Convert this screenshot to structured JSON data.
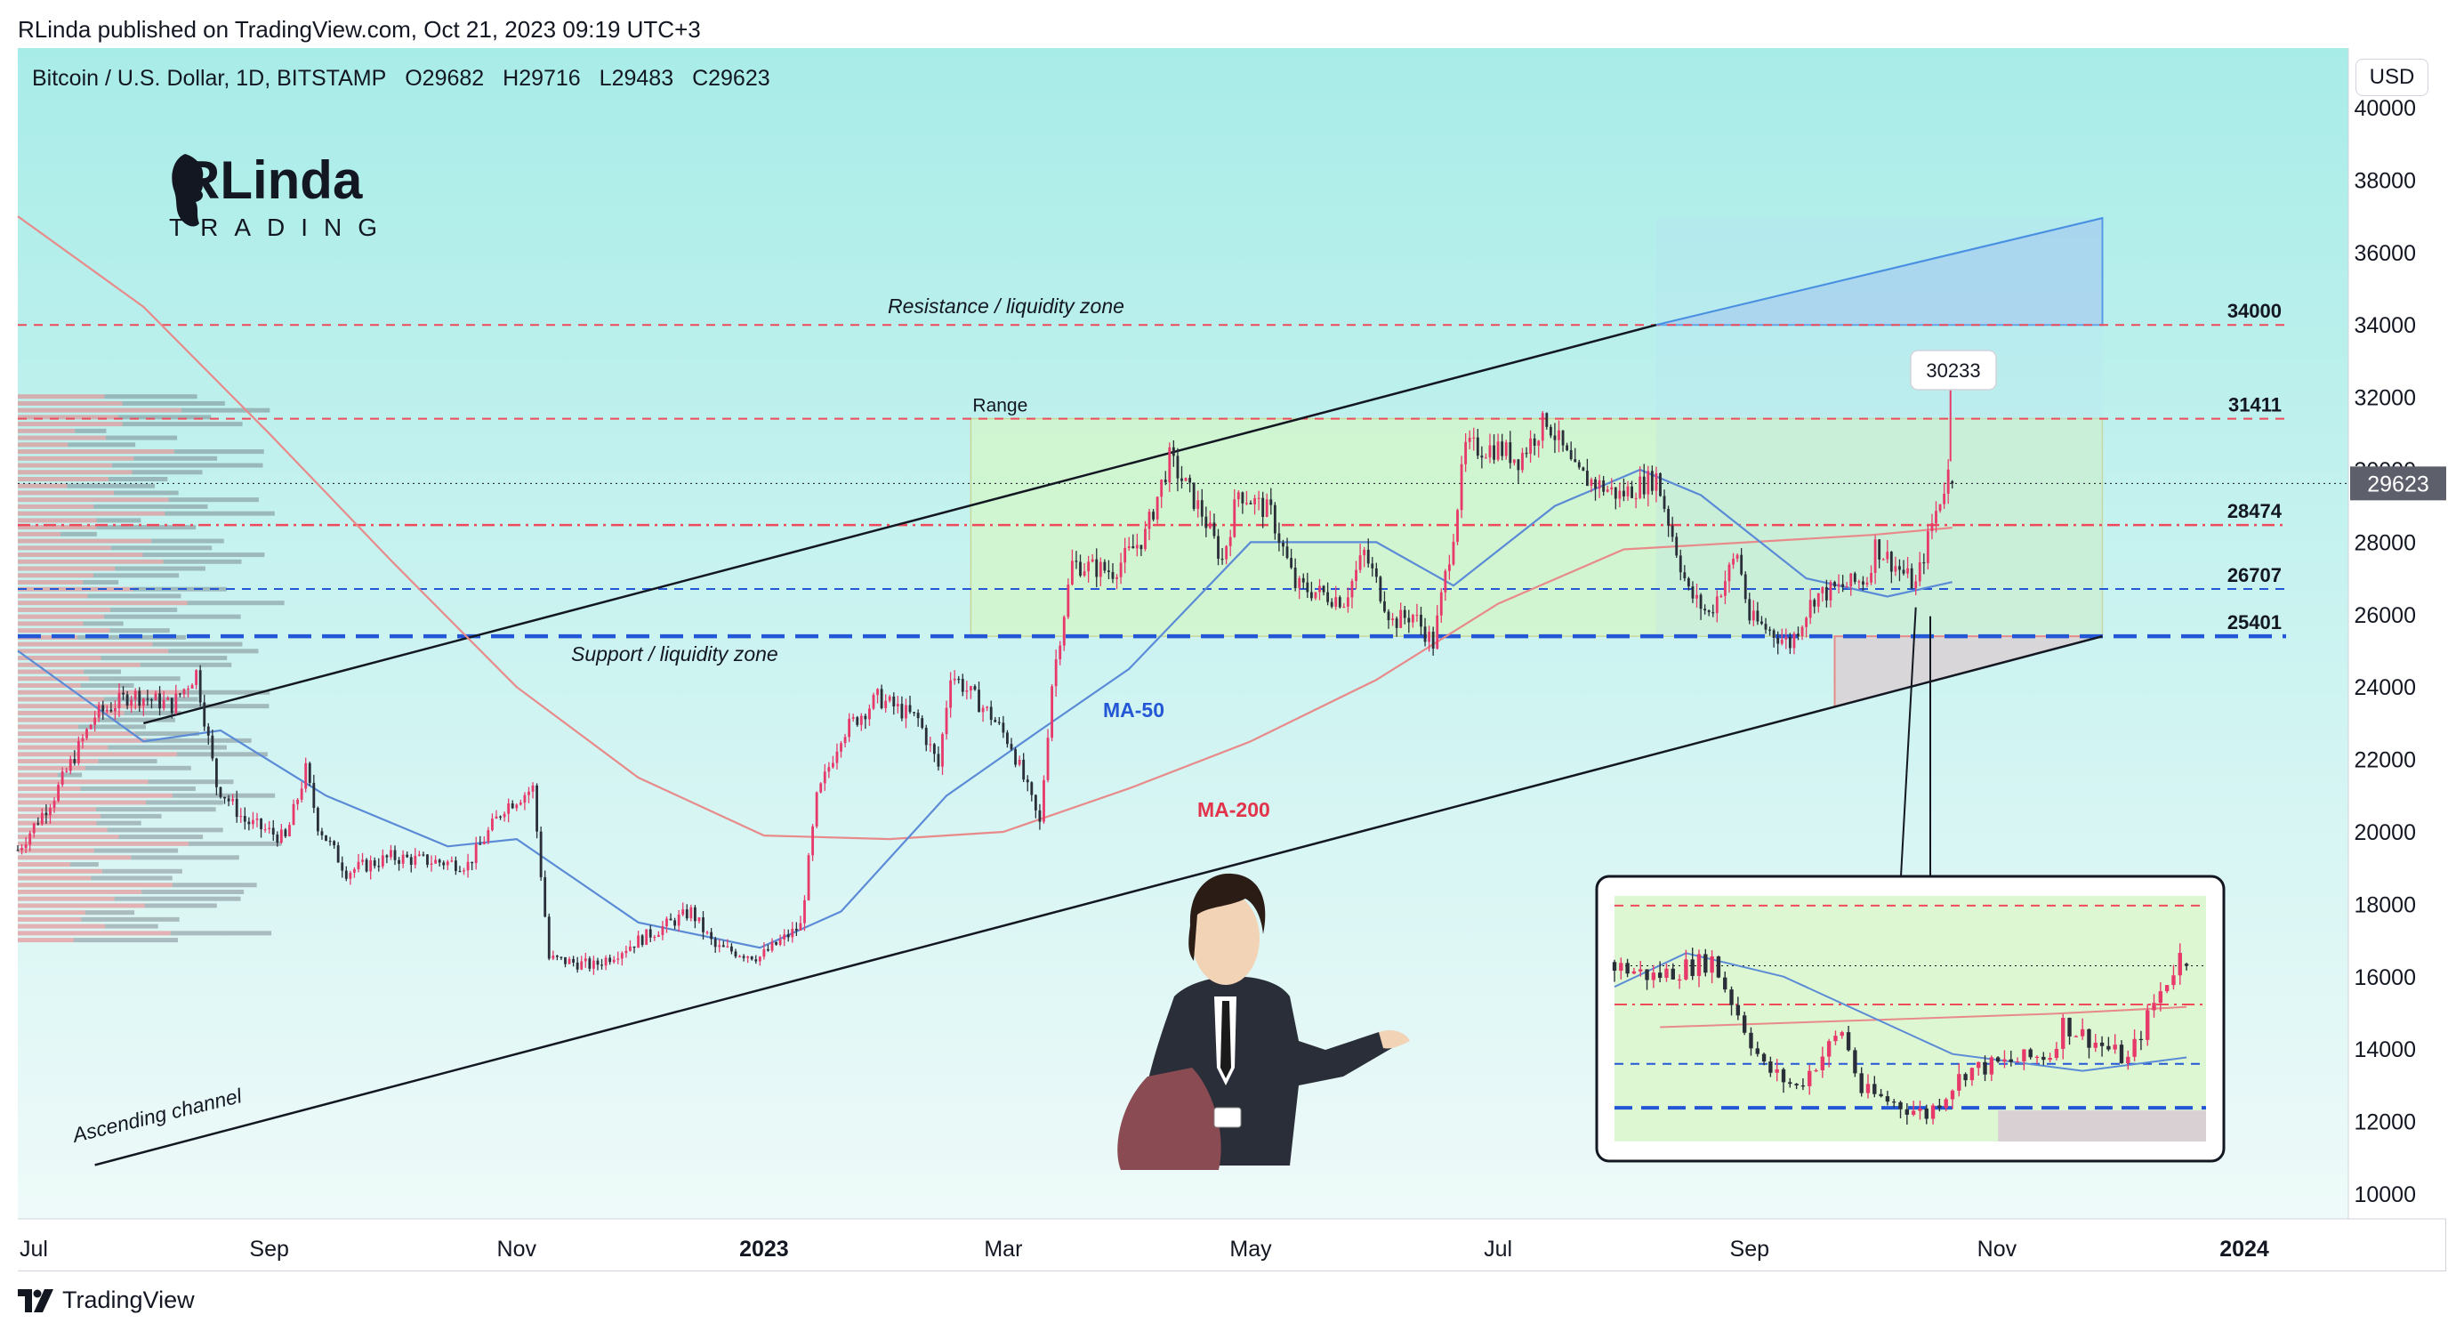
{
  "publisher_line": "RLinda published on TradingView.com, Oct 21, 2023 09:19 UTC+3",
  "footer": {
    "brand": "TradingView",
    "icon": "tradingview-logo-icon"
  },
  "currency_button": "USD",
  "legend": {
    "symbol": "Bitcoin / U.S. Dollar, 1D, BITSTAMP",
    "open": "O29682",
    "high": "H29716",
    "low": "L29483",
    "close": "C29623"
  },
  "brand_logo": {
    "line1": "RLinda",
    "line2": "TRADING",
    "icon": "woman-profile-logo-icon"
  },
  "illustration": {
    "icon": "confused-man-in-suit-illustration"
  },
  "colors": {
    "background_top": "#a8ece8",
    "background_bottom": "#eefaf9",
    "up_candle": "#e83a6a",
    "down_candle": "#2a2e39",
    "ma50": "#5b8bd6",
    "ma200": "#e88a8a",
    "resistance_line": "#f04a5a",
    "support_line": "#2457d6",
    "channel_line": "#131722",
    "range_fill": "#d4f5c7",
    "projection_fill": "#9fc7ee",
    "current_price_label": "#5d606b"
  },
  "chart_data": {
    "type": "candlestick",
    "symbol": "BTCUSD",
    "exchange": "BITSTAMP",
    "timeframe": "1D",
    "y_axis": {
      "range": [
        9500,
        40500
      ],
      "ticks": [
        10000,
        12000,
        14000,
        16000,
        18000,
        20000,
        22000,
        24000,
        26000,
        28000,
        30000,
        32000,
        34000,
        36000,
        38000,
        40000
      ]
    },
    "x_axis": {
      "ticks": [
        {
          "label": "Jul",
          "date": "2022-07-01",
          "bold": false
        },
        {
          "label": "Sep",
          "date": "2022-09-01",
          "bold": false
        },
        {
          "label": "Nov",
          "date": "2022-11-01",
          "bold": false
        },
        {
          "label": "2023",
          "date": "2023-01-01",
          "bold": true
        },
        {
          "label": "Mar",
          "date": "2023-03-01",
          "bold": false
        },
        {
          "label": "May",
          "date": "2023-05-01",
          "bold": false
        },
        {
          "label": "Jul",
          "date": "2023-07-01",
          "bold": false
        },
        {
          "label": "Sep",
          "date": "2023-09-01",
          "bold": false
        },
        {
          "label": "Nov",
          "date": "2023-11-01",
          "bold": false
        },
        {
          "label": "2024",
          "date": "2024-01-01",
          "bold": true
        }
      ]
    },
    "price_path": [
      [
        "2022-07-01",
        19500
      ],
      [
        "2022-07-10",
        21000
      ],
      [
        "2022-07-20",
        23200
      ],
      [
        "2022-07-29",
        23800
      ],
      [
        "2022-08-08",
        23500
      ],
      [
        "2022-08-14",
        24400
      ],
      [
        "2022-08-19",
        21300
      ],
      [
        "2022-08-26",
        20300
      ],
      [
        "2022-09-05",
        19800
      ],
      [
        "2022-09-10",
        21700
      ],
      [
        "2022-09-13",
        20200
      ],
      [
        "2022-09-20",
        18900
      ],
      [
        "2022-10-01",
        19300
      ],
      [
        "2022-10-10",
        19200
      ],
      [
        "2022-10-20",
        19100
      ],
      [
        "2022-10-29",
        20700
      ],
      [
        "2022-11-05",
        21200
      ],
      [
        "2022-11-09",
        16500
      ],
      [
        "2022-11-20",
        16300
      ],
      [
        "2022-12-01",
        17000
      ],
      [
        "2022-12-14",
        17800
      ],
      [
        "2022-12-20",
        16800
      ],
      [
        "2022-12-31",
        16550
      ],
      [
        "2023-01-10",
        17400
      ],
      [
        "2023-01-14",
        20900
      ],
      [
        "2023-01-20",
        22700
      ],
      [
        "2023-01-29",
        23700
      ],
      [
        "2023-02-08",
        23100
      ],
      [
        "2023-02-13",
        21800
      ],
      [
        "2023-02-16",
        24400
      ],
      [
        "2023-02-26",
        23200
      ],
      [
        "2023-03-03",
        22400
      ],
      [
        "2023-03-10",
        20200
      ],
      [
        "2023-03-13",
        24100
      ],
      [
        "2023-03-18",
        27400
      ],
      [
        "2023-03-28",
        27200
      ],
      [
        "2023-04-05",
        28200
      ],
      [
        "2023-04-11",
        30300
      ],
      [
        "2023-04-19",
        28800
      ],
      [
        "2023-04-24",
        27500
      ],
      [
        "2023-04-28",
        29400
      ],
      [
        "2023-05-06",
        28800
      ],
      [
        "2023-05-12",
        26800
      ],
      [
        "2023-05-24",
        26400
      ],
      [
        "2023-05-29",
        27700
      ],
      [
        "2023-06-05",
        25800
      ],
      [
        "2023-06-10",
        26000
      ],
      [
        "2023-06-15",
        25200
      ],
      [
        "2023-06-20",
        28300
      ],
      [
        "2023-06-23",
        30600
      ],
      [
        "2023-07-01",
        30600
      ],
      [
        "2023-07-06",
        30300
      ],
      [
        "2023-07-13",
        31400
      ],
      [
        "2023-07-20",
        29900
      ],
      [
        "2023-07-31",
        29300
      ],
      [
        "2023-08-09",
        29800
      ],
      [
        "2023-08-17",
        26600
      ],
      [
        "2023-08-22",
        26000
      ],
      [
        "2023-08-29",
        27700
      ],
      [
        "2023-09-01",
        25900
      ],
      [
        "2023-09-11",
        25200
      ],
      [
        "2023-09-17",
        26500
      ],
      [
        "2023-09-30",
        27000
      ],
      [
        "2023-10-02",
        27900
      ],
      [
        "2023-10-12",
        26800
      ],
      [
        "2023-10-16",
        28500
      ],
      [
        "2023-10-20",
        29900
      ],
      [
        "2023-10-21",
        29623
      ]
    ],
    "last_candle": {
      "date": "2023-10-21",
      "open": 29682,
      "high": 29716,
      "low": 29483,
      "close": 29623
    },
    "current_price": 29623,
    "spike_high": 30233,
    "levels": [
      {
        "value": 34000,
        "label": "34000",
        "style": "dashed",
        "color": "red"
      },
      {
        "value": 31411,
        "label": "31411",
        "style": "dashed",
        "color": "red"
      },
      {
        "value": 28474,
        "label": "28474",
        "style": "dash-dot",
        "color": "red"
      },
      {
        "value": 26707,
        "label": "26707",
        "style": "dashed",
        "color": "blue"
      },
      {
        "value": 25401,
        "label": "25401",
        "style": "dashed-thick",
        "color": "blue"
      }
    ],
    "annotations": {
      "resistance": "Resistance / liquidity zone",
      "support": "Support / liquidity zone",
      "range": "Range",
      "channel": "Ascending channel",
      "ma50": "MA-50",
      "ma200": "MA-200"
    },
    "range_box": {
      "start": "2023-02-21",
      "end": "2023-11-27",
      "low": 25401,
      "high": 31411
    },
    "channel": {
      "upper": [
        [
          "2022-08-01",
          23000
        ],
        [
          "2023-08-09",
          34000
        ]
      ],
      "lower": [
        [
          "2022-07-20",
          10800
        ],
        [
          "2023-11-27",
          25401
        ]
      ]
    },
    "projection_triangle": [
      [
        "2023-08-09",
        34000
      ],
      [
        "2023-11-27",
        36950
      ],
      [
        "2023-11-27",
        34000
      ]
    ],
    "demand_zone": {
      "start": "2023-09-22",
      "end": "2023-11-27",
      "high": 25401
    },
    "ma50": [
      [
        "2022-07-01",
        25000
      ],
      [
        "2022-08-01",
        22500
      ],
      [
        "2022-08-20",
        22800
      ],
      [
        "2022-09-15",
        21000
      ],
      [
        "2022-10-15",
        19600
      ],
      [
        "2022-11-01",
        19800
      ],
      [
        "2022-12-01",
        17500
      ],
      [
        "2022-12-31",
        16800
      ],
      [
        "2023-01-20",
        17800
      ],
      [
        "2023-02-15",
        21000
      ],
      [
        "2023-03-10",
        22800
      ],
      [
        "2023-04-01",
        24500
      ],
      [
        "2023-05-01",
        28000
      ],
      [
        "2023-06-01",
        28000
      ],
      [
        "2023-06-20",
        26800
      ],
      [
        "2023-07-15",
        29000
      ],
      [
        "2023-08-05",
        30000
      ],
      [
        "2023-08-20",
        29300
      ],
      [
        "2023-09-15",
        27000
      ],
      [
        "2023-10-05",
        26500
      ],
      [
        "2023-10-21",
        26900
      ]
    ],
    "ma200": [
      [
        "2022-07-01",
        37000
      ],
      [
        "2022-08-01",
        34500
      ],
      [
        "2022-09-01",
        31000
      ],
      [
        "2022-10-01",
        27500
      ],
      [
        "2022-11-01",
        24000
      ],
      [
        "2022-12-01",
        21500
      ],
      [
        "2023-01-01",
        19900
      ],
      [
        "2023-02-01",
        19800
      ],
      [
        "2023-03-01",
        20000
      ],
      [
        "2023-04-01",
        21200
      ],
      [
        "2023-05-01",
        22500
      ],
      [
        "2023-06-01",
        24200
      ],
      [
        "2023-07-01",
        26300
      ],
      [
        "2023-08-01",
        27800
      ],
      [
        "2023-09-01",
        28000
      ],
      [
        "2023-10-01",
        28200
      ],
      [
        "2023-10-21",
        28400
      ]
    ]
  }
}
